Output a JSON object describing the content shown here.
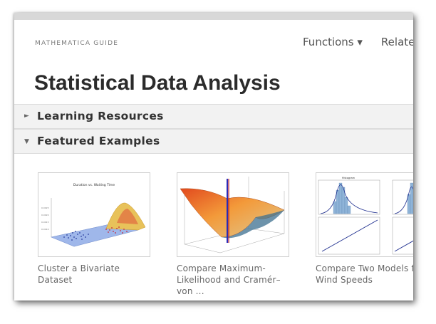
{
  "header": {
    "guide_label": "MATHEMATICA GUIDE",
    "nav": [
      {
        "label": "Functions ▾"
      },
      {
        "label": "Related"
      }
    ]
  },
  "page": {
    "title": "Statistical Data Analysis"
  },
  "sections": [
    {
      "label": "Learning Resources",
      "expanded": false,
      "toggle_glyph": "►"
    },
    {
      "label": "Featured Examples",
      "expanded": true,
      "toggle_glyph": "▼"
    }
  ],
  "examples": [
    {
      "caption": "Cluster a Bivariate Dataset",
      "thumb_title": "Duration vs. Waiting Time"
    },
    {
      "caption": "Compare Maximum-Likelihood and Cramér–von ..."
    },
    {
      "caption": "Compare Two Models for Wind Speeds",
      "thumb_title": "Histogram"
    }
  ],
  "colors": {
    "accent": "#2b2b2b",
    "section_bg": "#f2f2f2"
  }
}
